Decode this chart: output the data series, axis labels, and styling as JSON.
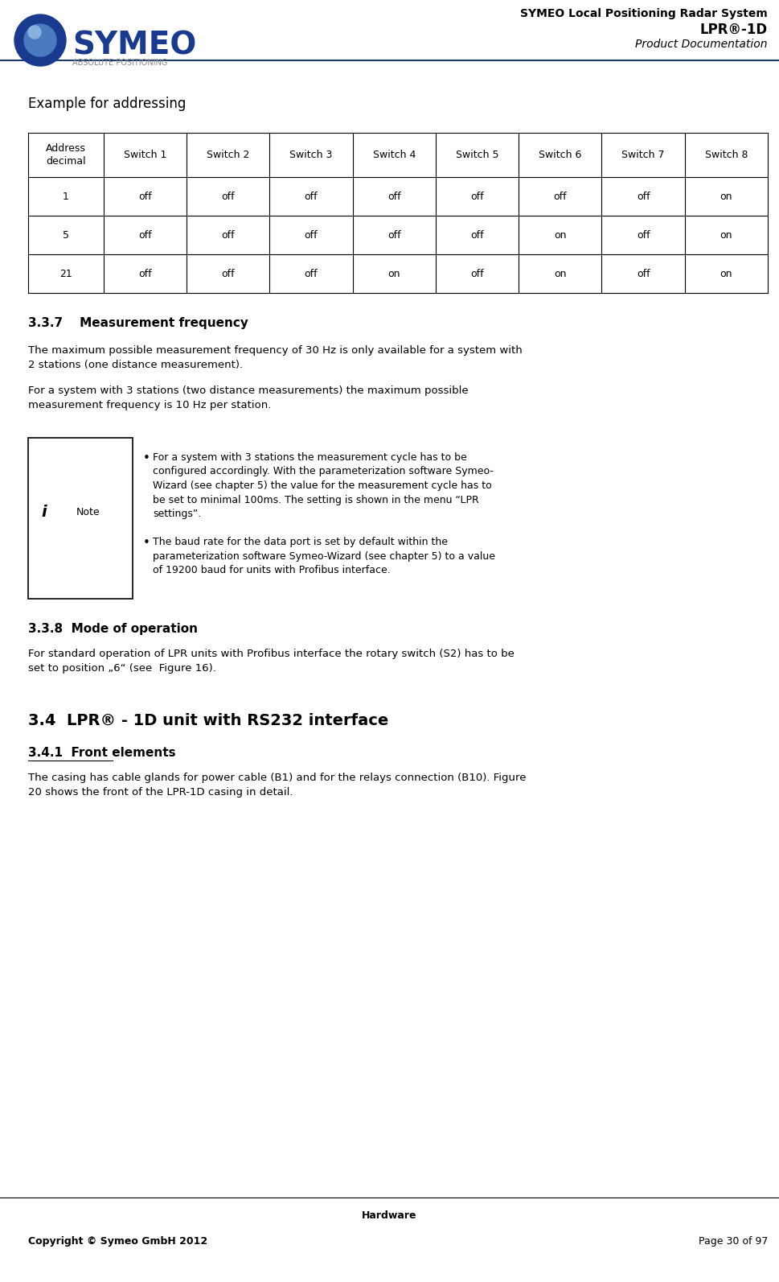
{
  "header_title_line1": "SYMEO Local Positioning Radar System",
  "header_title_line2": "LPR®-1D",
  "header_title_line3": "Product Documentation",
  "footer_section": "Hardware",
  "footer_copyright": "Copyright © Symeo GmbH 2012",
  "footer_page": "Page 30 of 97",
  "section_title": "Example for addressing",
  "table_headers": [
    "Address\ndecimal",
    "Switch 1",
    "Switch 2",
    "Switch 3",
    "Switch 4",
    "Switch 5",
    "Switch 6",
    "Switch 7",
    "Switch 8"
  ],
  "table_rows": [
    [
      "1",
      "off",
      "off",
      "off",
      "off",
      "off",
      "off",
      "off",
      "on"
    ],
    [
      "5",
      "off",
      "off",
      "off",
      "off",
      "off",
      "on",
      "off",
      "on"
    ],
    [
      "21",
      "off",
      "off",
      "off",
      "on",
      "off",
      "on",
      "off",
      "on"
    ]
  ],
  "section_337_title": "3.3.7    Measurement frequency",
  "para1": "The maximum possible measurement frequency of 30 Hz is only available for a system with\n2 stations (one distance measurement).",
  "para2": "For a system with 3 stations (two distance measurements) the maximum possible\nmeasurement frequency is 10 Hz per station.",
  "note_bullet1": "For a system with 3 stations the measurement cycle has to be\nconfigured accordingly. With the parameterization software Symeo-\nWizard (see chapter 5) the value for the measurement cycle has to\nbe set to minimal 100ms. The setting is shown in the menu “LPR\nsettings”.",
  "note_bullet2": "The baud rate for the data port is set by default within the\nparameterization software Symeo-Wizard (see chapter 5) to a value\nof 19200 baud for units with Profibus interface.",
  "section_338_title": "3.3.8  Mode of operation",
  "para_338": "For standard operation of LPR units with Profibus interface the rotary switch (S2) has to be\nset to position „6“ (see  Figure 16).",
  "section_34_title": "3.4  LPR® - 1D unit with RS232 interface",
  "section_341_title": "3.4.1  Front elements",
  "para_341": "The casing has cable glands for power cable (B1) and for the relays connection (B10). Figure\n20 shows the front of the LPR-1D casing in detail.",
  "bg_color": "#ffffff",
  "text_color": "#000000",
  "header_line_color": "#1a3a6e",
  "table_border_color": "#000000"
}
